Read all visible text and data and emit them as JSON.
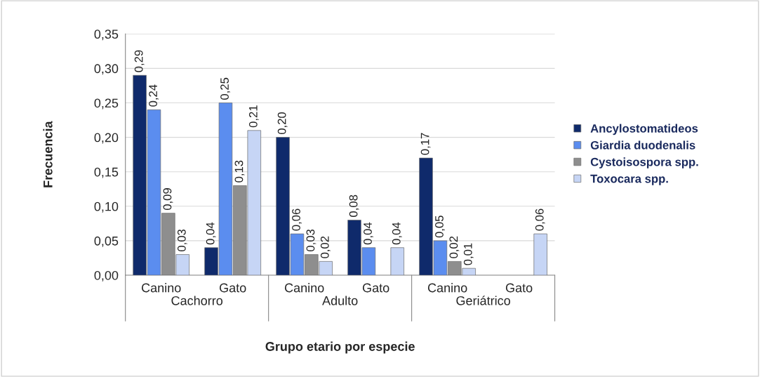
{
  "chart_data": {
    "type": "bar",
    "xlabel": "Grupo etario por especie",
    "ylabel": "Frecuencia",
    "categories": [
      "Canino",
      "Gato",
      "Canino",
      "Gato",
      "Canino",
      "Gato"
    ],
    "annotations": [
      "Cachorro",
      "Adulto",
      "Geriátrico"
    ],
    "series": [
      {
        "name": "Ancylostomatideos",
        "color": "#0f2a6b",
        "values": [
          0.29,
          0.04,
          0.2,
          0.08,
          0.17,
          null
        ],
        "value_labels": [
          "0,29",
          "0,04",
          "0,20",
          "0,08",
          "0,17",
          null
        ]
      },
      {
        "name": "Giardia duodenalis",
        "color": "#5b8def",
        "values": [
          0.24,
          0.25,
          0.06,
          0.04,
          0.05,
          null
        ],
        "value_labels": [
          "0,24",
          "0,25",
          "0,06",
          "0,04",
          "0,05",
          null
        ]
      },
      {
        "name": "Cystoisospora spp.",
        "color": "#8e8e8e",
        "values": [
          0.09,
          0.13,
          0.03,
          null,
          0.02,
          null
        ],
        "value_labels": [
          "0,09",
          "0,13",
          "0,03",
          null,
          "0,02",
          null
        ]
      },
      {
        "name": "Toxocara spp.",
        "color": "#c6d5f5",
        "values": [
          0.03,
          0.21,
          0.02,
          0.04,
          0.01,
          0.06
        ],
        "value_labels": [
          "0,03",
          "0,21",
          "0,02",
          "0,04",
          "0,01",
          "0,06"
        ]
      }
    ],
    "ylim": [
      0,
      0.35
    ],
    "yticks": [
      {
        "value": 0,
        "label": "0,00"
      },
      {
        "value": 0.05,
        "label": "0,05"
      },
      {
        "value": 0.1,
        "label": "0,10"
      },
      {
        "value": 0.15,
        "label": "0,15"
      },
      {
        "value": 0.2,
        "label": "0,20"
      },
      {
        "value": 0.25,
        "label": "0,25"
      },
      {
        "value": 0.3,
        "label": "0,30"
      },
      {
        "value": 0.35,
        "label": "0,35"
      }
    ],
    "grid": "y",
    "legend": "right"
  }
}
